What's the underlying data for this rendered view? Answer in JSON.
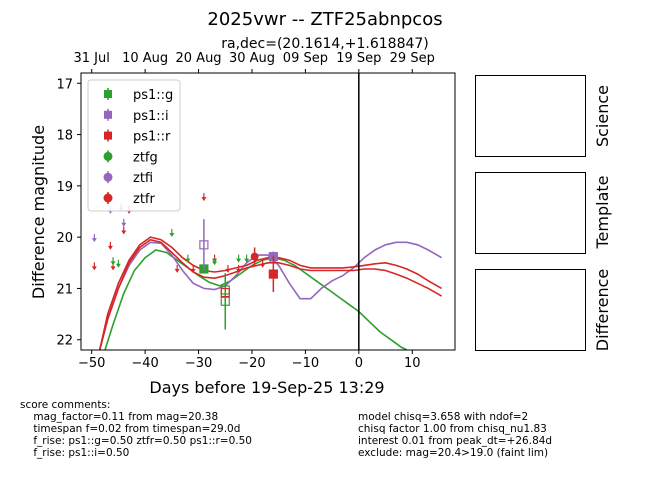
{
  "chart_data": {
    "type": "scatter",
    "title": "2025vwr -- ZTF25abnpcos",
    "subtitle": "ra,dec=(20.1614,+1.618847)",
    "xlabel": "Days before 19-Sep-25 13:29",
    "ylabel": "Difference magnitude",
    "xlim": [
      -52,
      18
    ],
    "ylim": [
      22.2,
      16.8
    ],
    "x_ticks": [
      -50,
      -40,
      -30,
      -20,
      -10,
      0,
      10
    ],
    "y_ticks": [
      17,
      18,
      19,
      20,
      21,
      22
    ],
    "top_axis_ticks": [
      {
        "x": -50,
        "label": "31 Jul"
      },
      {
        "x": -40,
        "label": "10 Aug"
      },
      {
        "x": -30,
        "label": "20 Aug"
      },
      {
        "x": -20,
        "label": "30 Aug"
      },
      {
        "x": -10,
        "label": "09 Sep"
      },
      {
        "x": 0,
        "label": "19 Sep"
      },
      {
        "x": 10,
        "label": "29 Sep"
      }
    ],
    "vline_x": 0,
    "legend_position": "upper-left",
    "legend": [
      "ps1::g",
      "ps1::i",
      "ps1::r",
      "ztfg",
      "ztfi",
      "ztfr"
    ],
    "colors": {
      "g": "#2ca02c",
      "i": "#9467bd",
      "r": "#d62728"
    },
    "detections": [
      {
        "series": "ps1::g",
        "band": "g",
        "x": -29,
        "y": 20.62,
        "err": 0.0,
        "filled": true
      },
      {
        "series": "ps1::g",
        "band": "g",
        "x": -25,
        "y": 21.03,
        "err": 0.0,
        "filled": false
      },
      {
        "series": "ps1::g",
        "band": "g",
        "x": -25,
        "y": 21.25,
        "err": 0.55,
        "filled": false
      },
      {
        "series": "ps1::i",
        "band": "i",
        "x": -29,
        "y": 20.15,
        "err": 0.5,
        "filled": false
      },
      {
        "series": "ps1::i",
        "band": "i",
        "x": -16,
        "y": 20.38,
        "err": 0.1,
        "filled": true
      },
      {
        "series": "ps1::r",
        "band": "r",
        "x": -25,
        "y": 21.08,
        "err": 0.0,
        "filled": false
      },
      {
        "series": "ps1::r",
        "band": "r",
        "x": -16,
        "y": 20.72,
        "err": 0.35,
        "filled": true
      },
      {
        "series": "ztfr",
        "band": "r",
        "x": -19.5,
        "y": 20.38,
        "err": 0.18,
        "filled": true
      }
    ],
    "upper_limits": [
      {
        "band": "r",
        "x": -49.5,
        "y": 20.55
      },
      {
        "band": "r",
        "x": -46.5,
        "y": 20.15
      },
      {
        "band": "r",
        "x": -46.0,
        "y": 20.55
      },
      {
        "band": "r",
        "x": -44.0,
        "y": 19.85
      },
      {
        "band": "r",
        "x": -43.0,
        "y": 19.45
      },
      {
        "band": "r",
        "x": -34.0,
        "y": 20.6
      },
      {
        "band": "r",
        "x": -31.0,
        "y": 20.6
      },
      {
        "band": "r",
        "x": -29.0,
        "y": 19.2
      },
      {
        "band": "r",
        "x": -27.0,
        "y": 20.4
      },
      {
        "band": "r",
        "x": -24.5,
        "y": 20.6
      },
      {
        "band": "r",
        "x": -22.5,
        "y": 20.6
      },
      {
        "band": "r",
        "x": -18.0,
        "y": 20.5
      },
      {
        "band": "g",
        "x": -46.0,
        "y": 20.45
      },
      {
        "band": "g",
        "x": -45.0,
        "y": 20.5
      },
      {
        "band": "g",
        "x": -35.0,
        "y": 19.9
      },
      {
        "band": "g",
        "x": -32.0,
        "y": 20.4
      },
      {
        "band": "g",
        "x": -27.0,
        "y": 20.45
      },
      {
        "band": "g",
        "x": -22.5,
        "y": 20.4
      },
      {
        "band": "g",
        "x": -21.0,
        "y": 20.4
      },
      {
        "band": "g",
        "x": -16.5,
        "y": 20.4
      },
      {
        "band": "i",
        "x": -49.5,
        "y": 20.0
      },
      {
        "band": "i",
        "x": -46.5,
        "y": 19.45
      },
      {
        "band": "i",
        "x": -44.5,
        "y": 19.4
      },
      {
        "band": "i",
        "x": -44.0,
        "y": 19.7
      }
    ],
    "models": [
      {
        "band": "g",
        "x": [
          -47.5,
          -46,
          -44,
          -42,
          -40,
          -38,
          -36,
          -34,
          -32,
          -30,
          -28,
          -26,
          -24,
          -22,
          -20,
          -18,
          -16,
          -14,
          -12,
          -10,
          -8,
          -6,
          -4,
          -2,
          0,
          2,
          4,
          6,
          8,
          9
        ],
        "y": [
          22.2,
          21.7,
          21.1,
          20.65,
          20.4,
          20.25,
          20.3,
          20.45,
          20.6,
          20.75,
          20.88,
          20.95,
          20.85,
          20.7,
          20.55,
          20.45,
          20.4,
          20.45,
          20.55,
          20.7,
          20.85,
          21.0,
          21.15,
          21.3,
          21.45,
          21.65,
          21.85,
          22.0,
          22.15,
          22.2
        ]
      },
      {
        "band": "i",
        "x": [
          -48.5,
          -47,
          -45,
          -43,
          -41,
          -39,
          -37,
          -35,
          -33,
          -31,
          -29,
          -27,
          -25,
          -23,
          -21,
          -19,
          -17,
          -15,
          -13,
          -11,
          -9,
          -7,
          -5,
          -3,
          -1,
          1,
          3,
          5,
          7,
          9,
          11,
          13,
          15.5
        ],
        "y": [
          22.2,
          21.6,
          21.0,
          20.55,
          20.25,
          20.1,
          20.12,
          20.35,
          20.65,
          20.9,
          21.0,
          21.02,
          20.95,
          20.75,
          20.5,
          20.35,
          20.35,
          20.55,
          20.9,
          21.2,
          21.2,
          21.0,
          20.85,
          20.75,
          20.6,
          20.4,
          20.25,
          20.15,
          20.1,
          20.1,
          20.15,
          20.25,
          20.4
        ]
      },
      {
        "band": "r",
        "x": [
          -48.5,
          -47,
          -45,
          -43,
          -41,
          -39,
          -37,
          -35,
          -33,
          -31,
          -29,
          -27,
          -25,
          -23,
          -21,
          -19,
          -17,
          -15,
          -13,
          -11,
          -9,
          -7,
          -5,
          -3,
          -1,
          1,
          3,
          5,
          7,
          9,
          11,
          13,
          15.5
        ],
        "y": [
          22.2,
          21.5,
          20.9,
          20.45,
          20.15,
          20.0,
          20.05,
          20.2,
          20.4,
          20.55,
          20.65,
          20.68,
          20.65,
          20.6,
          20.55,
          20.45,
          20.4,
          20.4,
          20.45,
          20.55,
          20.6,
          20.6,
          20.6,
          20.6,
          20.58,
          20.55,
          20.52,
          20.5,
          20.55,
          20.62,
          20.72,
          20.85,
          21.0
        ]
      },
      {
        "band": "r",
        "x": [
          -48.5,
          -47,
          -45,
          -43,
          -41,
          -39,
          -37,
          -35,
          -33,
          -31,
          -29,
          -27,
          -25,
          -23,
          -21,
          -19,
          -17,
          -15,
          -13,
          -11,
          -9,
          -7,
          -5,
          -3,
          -1,
          1,
          3,
          5,
          7,
          9,
          11,
          13,
          15.5
        ],
        "y": [
          22.2,
          21.6,
          21.0,
          20.5,
          20.2,
          20.05,
          20.1,
          20.3,
          20.5,
          20.68,
          20.78,
          20.8,
          20.75,
          20.68,
          20.6,
          20.55,
          20.5,
          20.5,
          20.55,
          20.62,
          20.65,
          20.65,
          20.65,
          20.65,
          20.65,
          20.62,
          20.62,
          20.65,
          20.72,
          20.8,
          20.9,
          21.0,
          21.15
        ]
      }
    ]
  },
  "panels": {
    "science": "Science",
    "template": "Template",
    "difference": "Difference"
  },
  "comments_left": "score comments:\n    mag_factor=0.11 from mag=20.38\n    timespan f=0.02 from timespan=29.0d\n    f_rise: ps1::g=0.50 ztfr=0.50 ps1::r=0.50\n    f_rise: ps1::i=0.50",
  "comments_right": "model chisq=3.658 with ndof=2\nchisq factor 1.00 from chisq_nu1.83\ninterest 0.01 from peak_dt=+26.84d\nexclude: mag=20.4>19.0 (faint lim)"
}
